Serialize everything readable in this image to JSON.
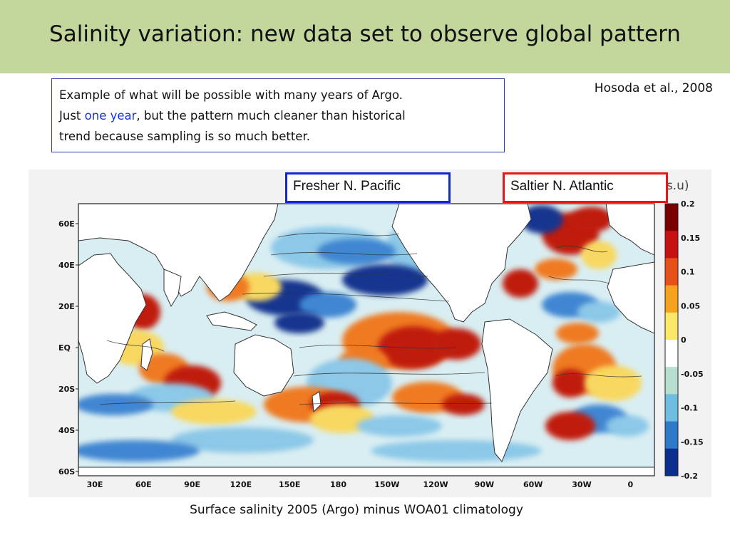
{
  "slide": {
    "title": "Salinity variation: new data set to observe global pattern",
    "citation": "Hosoda et al., 2008",
    "header_color": "#c3d69b"
  },
  "note": {
    "line1": "Example of what will be possible with many years of  Argo.",
    "line2_pre": "Just ",
    "line2_highlight": "one year",
    "line2_post": ", but the pattern much cleaner than historical",
    "line3": "trend because sampling is so much better.",
    "highlight_color": "#1535d6"
  },
  "callouts": {
    "pacific": {
      "label": "Fresher N. Pacific",
      "border_color": "#1428c8"
    },
    "atlantic": {
      "label": "Saltier N. Atlantic",
      "border_color": "#e01818"
    }
  },
  "map": {
    "type": "salinity-anomaly-map",
    "units": "(p.s.u)",
    "lat_ticks": [
      "60E",
      "40E",
      "20E",
      "EQ",
      "20S",
      "40S",
      "60S"
    ],
    "lon_ticks": [
      "30E",
      "60E",
      "90E",
      "120E",
      "150E",
      "180",
      "150W",
      "120W",
      "90W",
      "60W",
      "30W",
      "0"
    ],
    "colorbar": {
      "ticks": [
        "0.2",
        "0.15",
        "0.1",
        "0.05",
        "0",
        "-0.05",
        "-0.1",
        "-0.15",
        "-0.2"
      ],
      "colors": [
        "#7a0000",
        "#c81010",
        "#e8501a",
        "#f5a21e",
        "#fbe76a",
        "#ffffff",
        "#b7dfd0",
        "#6fbde0",
        "#2f79c9",
        "#0a2f8f"
      ]
    },
    "anomaly_colors": {
      "strong_red": "#c01a10",
      "orange": "#ef7a22",
      "yellow": "#f8d860",
      "light_blue": "#8cc8e8",
      "mid_blue": "#3f86d2",
      "dark_blue": "#12358f",
      "land": "#ffffff"
    }
  },
  "caption": "Surface salinity  2005 (Argo)  minus WOA01 climatology"
}
